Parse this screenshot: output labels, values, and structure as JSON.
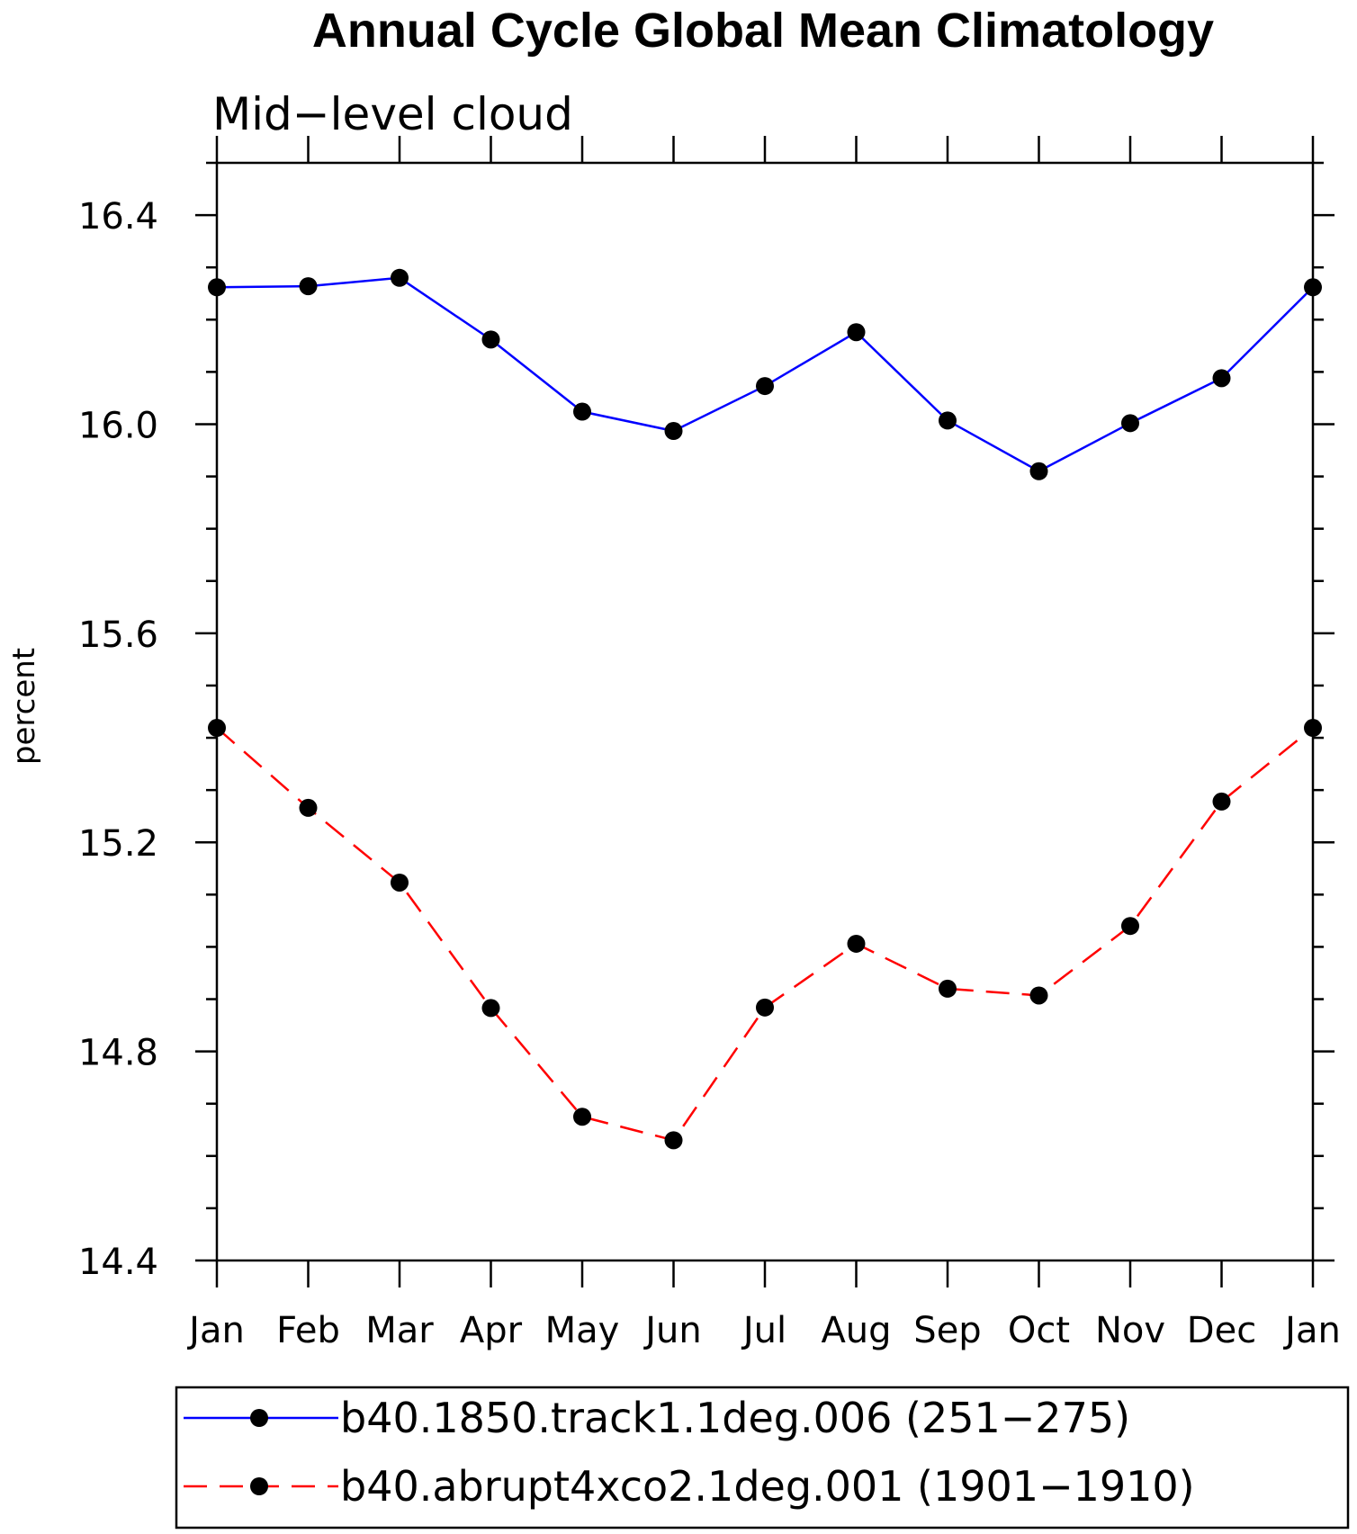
{
  "chart_data": {
    "type": "line",
    "title": "Annual Cycle Global Mean Climatology",
    "subtitle": "Mid−level cloud",
    "ylabel": "percent",
    "xlabel": "",
    "categories": [
      "Jan",
      "Feb",
      "Mar",
      "Apr",
      "May",
      "Jun",
      "Jul",
      "Aug",
      "Sep",
      "Oct",
      "Nov",
      "Dec",
      "Jan"
    ],
    "ylim": [
      14.4,
      16.5
    ],
    "yticks": [
      "16.4",
      "16.0",
      "15.6",
      "15.2",
      "14.8",
      "14.4"
    ],
    "ytick_values": [
      16.4,
      16.0,
      15.6,
      15.2,
      14.8,
      14.4
    ],
    "legend_position": "bottom",
    "series": [
      {
        "name": "b40.1850.track1.1deg.006 (251−275)",
        "color": "#0000ff",
        "line_style": "solid",
        "marker": "filled-circle",
        "values": [
          16.262,
          16.264,
          16.28,
          16.162,
          16.024,
          15.987,
          16.073,
          16.176,
          16.007,
          15.91,
          16.002,
          16.088,
          16.262
        ]
      },
      {
        "name": "b40.abrupt4xco2.1deg.001 (1901−1910)",
        "color": "#ff0000",
        "line_style": "dashed",
        "marker": "filled-circle",
        "values": [
          15.419,
          15.266,
          15.123,
          14.883,
          14.675,
          14.63,
          14.884,
          15.006,
          14.92,
          14.907,
          15.04,
          15.278,
          15.419
        ]
      }
    ]
  }
}
